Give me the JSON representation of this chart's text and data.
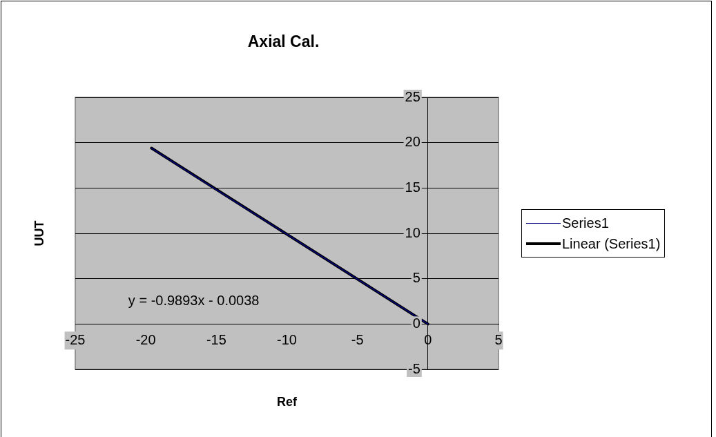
{
  "chart_data": {
    "type": "line",
    "title": "Axial Cal.",
    "xlabel": "Ref",
    "ylabel": "UUT",
    "xlim": [
      -25,
      5
    ],
    "xticks": [
      -25,
      -20,
      -15,
      -10,
      -5,
      0,
      5
    ],
    "ylim": [
      -5,
      25
    ],
    "yticks": [
      -5,
      0,
      5,
      10,
      15,
      20,
      25
    ],
    "grid": "y",
    "legend": "right",
    "marker": "none",
    "line_style": "solid",
    "series": [
      {
        "name": "Series1",
        "color": "#000080",
        "x": [
          -19.6,
          -15,
          -10,
          -5,
          0
        ],
        "values": [
          19.4,
          14.8,
          9.9,
          4.95,
          0
        ]
      },
      {
        "name": "Linear (Series1)",
        "color": "#000000",
        "x": [
          -19.6,
          0
        ],
        "values": [
          19.4,
          0
        ]
      }
    ],
    "annotations": [
      "y = -0.9893x - 0.0038"
    ]
  }
}
